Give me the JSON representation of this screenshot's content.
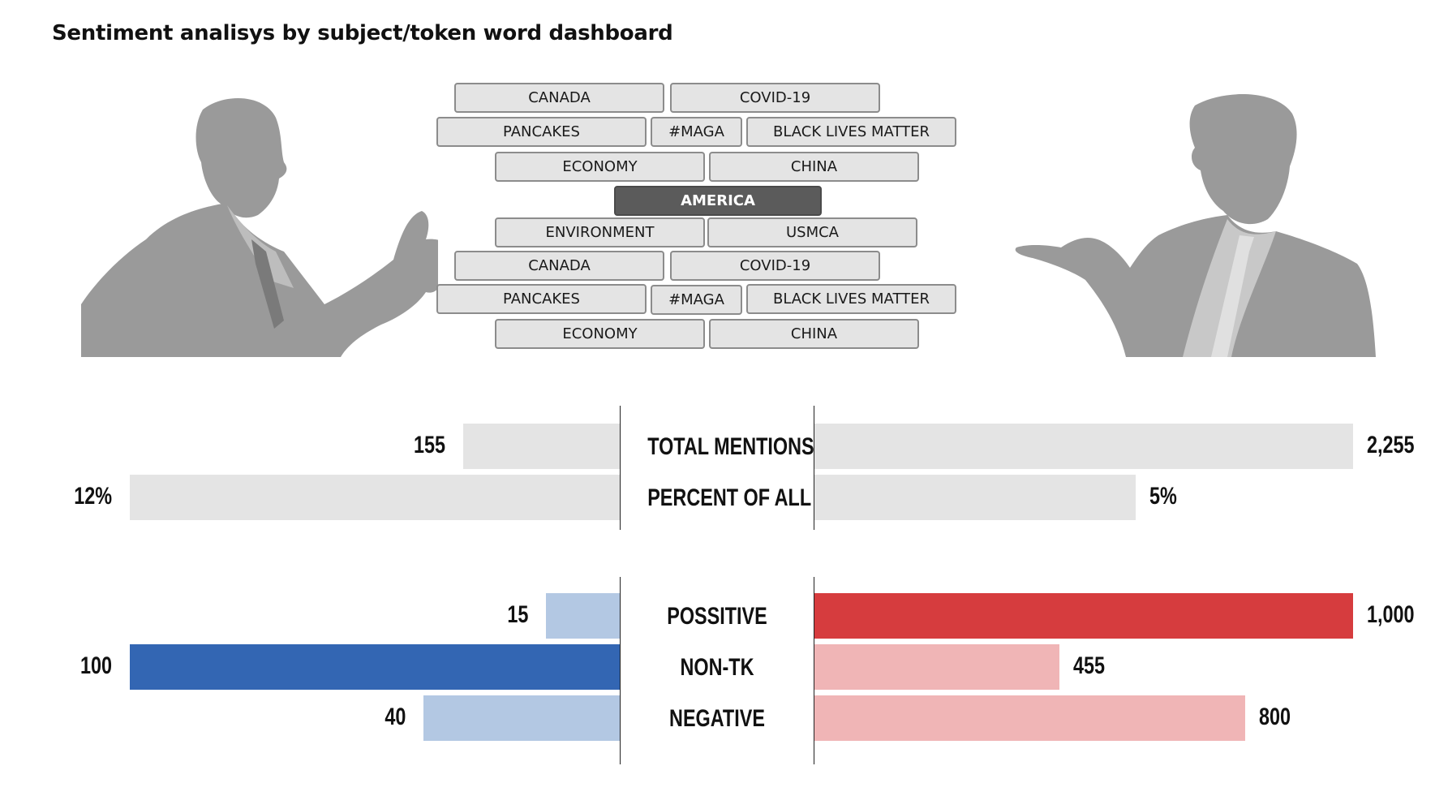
{
  "title": "Sentiment analisys by subject/token word dashboard",
  "tokens": [
    {
      "label": "CANADA",
      "active": false
    },
    {
      "label": "COVID-19",
      "active": false
    },
    {
      "label": "PANCAKES",
      "active": false
    },
    {
      "label": "#MAGA",
      "active": false
    },
    {
      "label": "BLACK LIVES MATTER",
      "active": false
    },
    {
      "label": "ECONOMY",
      "active": false
    },
    {
      "label": "CHINA",
      "active": false
    },
    {
      "label": "AMERICA",
      "active": true
    },
    {
      "label": "ENVIRONMENT",
      "active": false
    },
    {
      "label": "USMCA",
      "active": false
    },
    {
      "label": "CANADA",
      "active": false
    },
    {
      "label": "COVID-19",
      "active": false
    },
    {
      "label": "PANCAKES",
      "active": false
    },
    {
      "label": "#MAGA",
      "active": false
    },
    {
      "label": "BLACK LIVES MATTER",
      "active": false
    },
    {
      "label": "ECONOMY",
      "active": false
    },
    {
      "label": "CHINA",
      "active": false
    }
  ],
  "colors": {
    "neutral_bar": "#e4e4e4",
    "left_strong": "#3366b3",
    "left_light": "#b3c8e3",
    "right_strong": "#d63c3e",
    "right_light": "#f0b5b6",
    "portrait_gray": "#9a9a9a"
  },
  "portraits": {
    "left_icon": "speaking-man-silhouette-icon",
    "right_icon": "pointing-man-silhouette-icon"
  },
  "chart_data": [
    {
      "type": "bar",
      "categories": [
        "TOTAL MENTIONS",
        "PERCENT OF ALL"
      ],
      "series": [
        {
          "values": [
            155,
            12
          ],
          "labels": [
            "155",
            "12%"
          ]
        },
        {
          "values": [
            2255,
            5
          ],
          "labels": [
            "2,255",
            "5%"
          ]
        }
      ]
    },
    {
      "type": "bar",
      "categories": [
        "POSSITIVE",
        "NON-TK",
        "NEGATIVE"
      ],
      "series": [
        {
          "values": [
            15,
            100,
            40
          ],
          "labels": [
            "15",
            "100",
            "40"
          ]
        },
        {
          "values": [
            1000,
            455,
            800
          ],
          "labels": [
            "1,000",
            "455",
            "800"
          ]
        }
      ]
    }
  ]
}
